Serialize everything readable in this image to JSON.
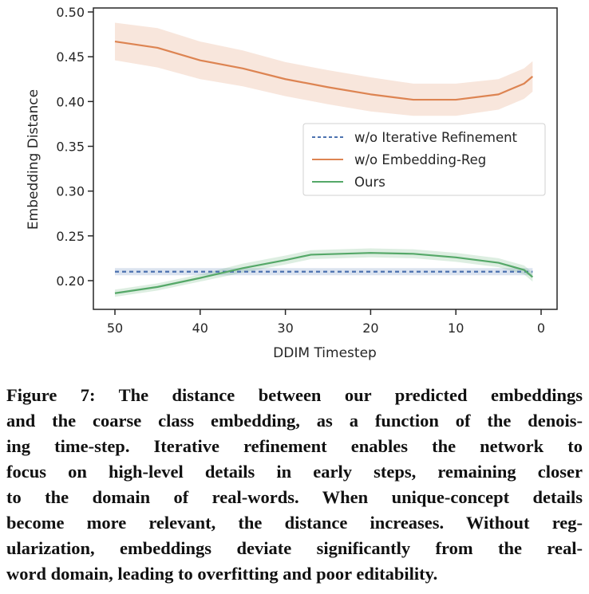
{
  "chart_data": {
    "type": "line",
    "xlabel": "DDIM Timestep",
    "ylabel": "Embedding Distance",
    "xlim": [
      51.5,
      -1.5
    ],
    "ylim": [
      0.178,
      0.505
    ],
    "x_inverted": true,
    "xticks": [
      50,
      40,
      30,
      20,
      10,
      0
    ],
    "yticks": [
      0.2,
      0.25,
      0.3,
      0.35,
      0.4,
      0.45,
      0.5
    ],
    "ytick_labels": [
      "0.20",
      "0.25",
      "0.30",
      "0.35",
      "0.40",
      "0.45",
      "0.50"
    ],
    "grid": false,
    "legend_placement": "center-right",
    "series": [
      {
        "name": "w/o Iterative Refinement",
        "color": "#4c72b0",
        "style": "dashed",
        "x": [
          50,
          40,
          30,
          20,
          10,
          1
        ],
        "y": [
          0.21,
          0.21,
          0.21,
          0.21,
          0.21,
          0.21
        ],
        "band": [
          0.004,
          0.004,
          0.004,
          0.004,
          0.004,
          0.004
        ]
      },
      {
        "name": "w/o Embedding-Reg",
        "color": "#dd8452",
        "style": "solid",
        "x": [
          50,
          45,
          40,
          35,
          30,
          25,
          20,
          15,
          10,
          5,
          2,
          1
        ],
        "y": [
          0.467,
          0.46,
          0.446,
          0.437,
          0.425,
          0.416,
          0.408,
          0.402,
          0.402,
          0.408,
          0.42,
          0.428
        ],
        "band": [
          0.021,
          0.022,
          0.021,
          0.02,
          0.019,
          0.019,
          0.019,
          0.018,
          0.018,
          0.017,
          0.017,
          0.017
        ]
      },
      {
        "name": "Ours",
        "color": "#55a868",
        "style": "solid",
        "x": [
          50,
          45,
          40,
          35,
          30,
          27,
          20,
          15,
          10,
          5,
          2,
          1
        ],
        "y": [
          0.186,
          0.193,
          0.203,
          0.214,
          0.223,
          0.229,
          0.231,
          0.23,
          0.226,
          0.22,
          0.212,
          0.204
        ],
        "band": [
          0.004,
          0.004,
          0.004,
          0.005,
          0.005,
          0.005,
          0.005,
          0.005,
          0.005,
          0.005,
          0.005,
          0.005
        ]
      }
    ]
  },
  "caption": {
    "lines": [
      "Figure 7: The distance between our predicted embeddings",
      "and the coarse class embedding, as a function of the denois-",
      "ing time-step. Iterative refinement enables the network to",
      "focus on high-level details in early steps, remaining closer",
      "to the domain of real-words. When unique-concept details",
      "become more relevant, the distance increases. Without reg-",
      "ularization, embeddings deviate significantly from the real-",
      "word domain, leading to overfitting and poor editability."
    ]
  }
}
